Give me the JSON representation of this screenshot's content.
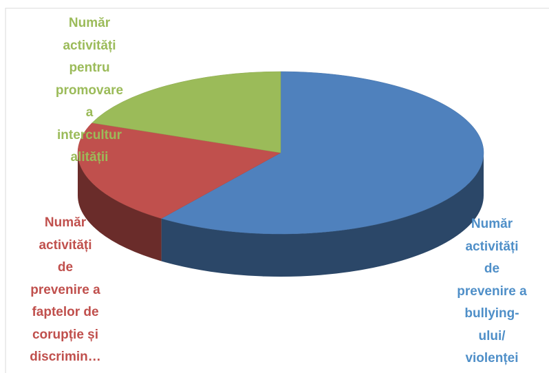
{
  "chart_data": {
    "type": "pie3d",
    "categories": [
      "Număr\nactivități\nde\nprevenire a\nbullying-\nului/\nviolenței",
      "Număr\nactivități\nde\nprevenire a\nfaptelor de\ncorupție și\ndiscrimin…",
      "Număr\nactivități\npentru\npromovare\na\nintercultur\nalității"
    ],
    "values": [
      60,
      21,
      19
    ],
    "colors": [
      "#4f81bd",
      "#c0504d",
      "#9bbb59"
    ]
  }
}
